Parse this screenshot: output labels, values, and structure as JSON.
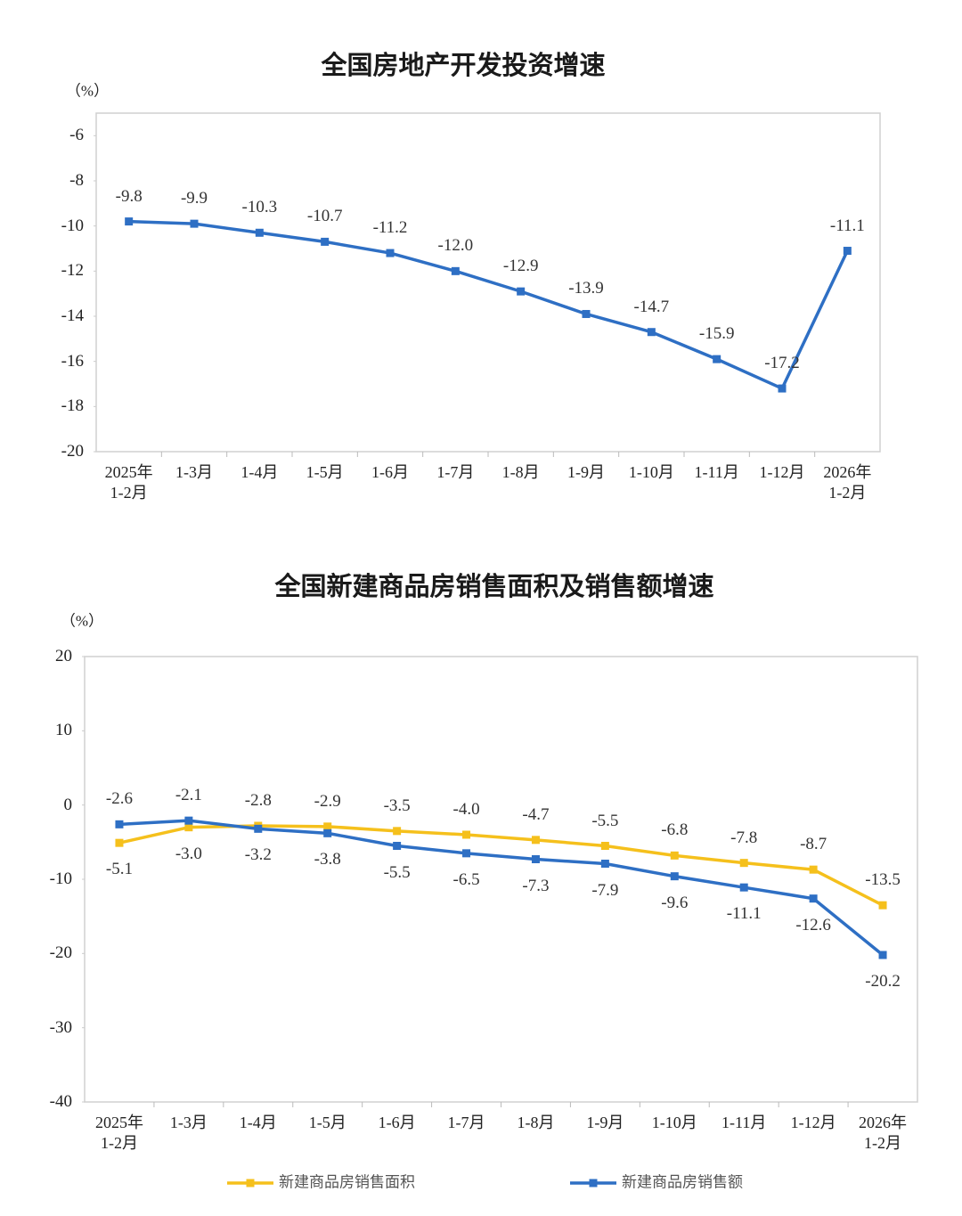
{
  "chart_data": [
    {
      "type": "line",
      "title": "全国房地产开发投资增速",
      "y_unit": "（%）",
      "categories": [
        "2025年\n1-2月",
        "1-3月",
        "1-4月",
        "1-5月",
        "1-6月",
        "1-7月",
        "1-8月",
        "1-9月",
        "1-10月",
        "1-11月",
        "1-12月",
        "2026年\n1-2月"
      ],
      "values": [
        -9.8,
        -9.9,
        -10.3,
        -10.7,
        -11.2,
        -12.0,
        -12.9,
        -13.9,
        -14.7,
        -15.9,
        -17.2,
        -11.1
      ],
      "value_labels": [
        "-9.8",
        "-9.9",
        "-10.3",
        "-10.7",
        "-11.2",
        "-12.0",
        "-12.9",
        "-13.9",
        "-14.7",
        "-15.9",
        "-17.2",
        "-11.1"
      ],
      "color": "#2e6fc4",
      "ylim": [
        -20,
        -5
      ],
      "yticks": [
        -20,
        -18,
        -16,
        -14,
        -12,
        -10,
        -8,
        -6
      ],
      "grid": false
    },
    {
      "type": "line",
      "title": "全国新建商品房销售面积及销售额增速",
      "y_unit": "（%）",
      "categories": [
        "2025年\n1-2月",
        "1-3月",
        "1-4月",
        "1-5月",
        "1-6月",
        "1-7月",
        "1-8月",
        "1-9月",
        "1-10月",
        "1-11月",
        "1-12月",
        "2026年\n1-2月"
      ],
      "series": [
        {
          "name": "新建商品房销售面积",
          "color": "#f5c01c",
          "values": [
            -5.1,
            -3.0,
            -2.8,
            -2.9,
            -3.5,
            -4.0,
            -4.7,
            -5.5,
            -6.8,
            -7.8,
            -8.7,
            -13.5
          ],
          "value_labels": [
            "-5.1",
            "-3.0",
            "-2.8",
            "-2.9",
            "-3.5",
            "-4.0",
            "-4.7",
            "-5.5",
            "-6.8",
            "-7.8",
            "-8.7",
            "-13.5"
          ]
        },
        {
          "name": "新建商品房销售额",
          "color": "#2e6fc4",
          "values": [
            -2.6,
            -2.1,
            -3.2,
            -3.8,
            -5.5,
            -6.5,
            -7.3,
            -7.9,
            -9.6,
            -11.1,
            -12.6,
            -20.2
          ],
          "value_labels": [
            "-2.6",
            "-2.1",
            "-3.2",
            "-3.8",
            "-5.5",
            "-6.5",
            "-7.3",
            "-7.9",
            "-9.6",
            "-11.1",
            "-12.6",
            "-20.2"
          ]
        }
      ],
      "ylim": [
        -40,
        20
      ],
      "yticks": [
        -40,
        -30,
        -20,
        -10,
        0,
        10,
        20
      ],
      "grid": false,
      "legend": "bottom"
    }
  ]
}
